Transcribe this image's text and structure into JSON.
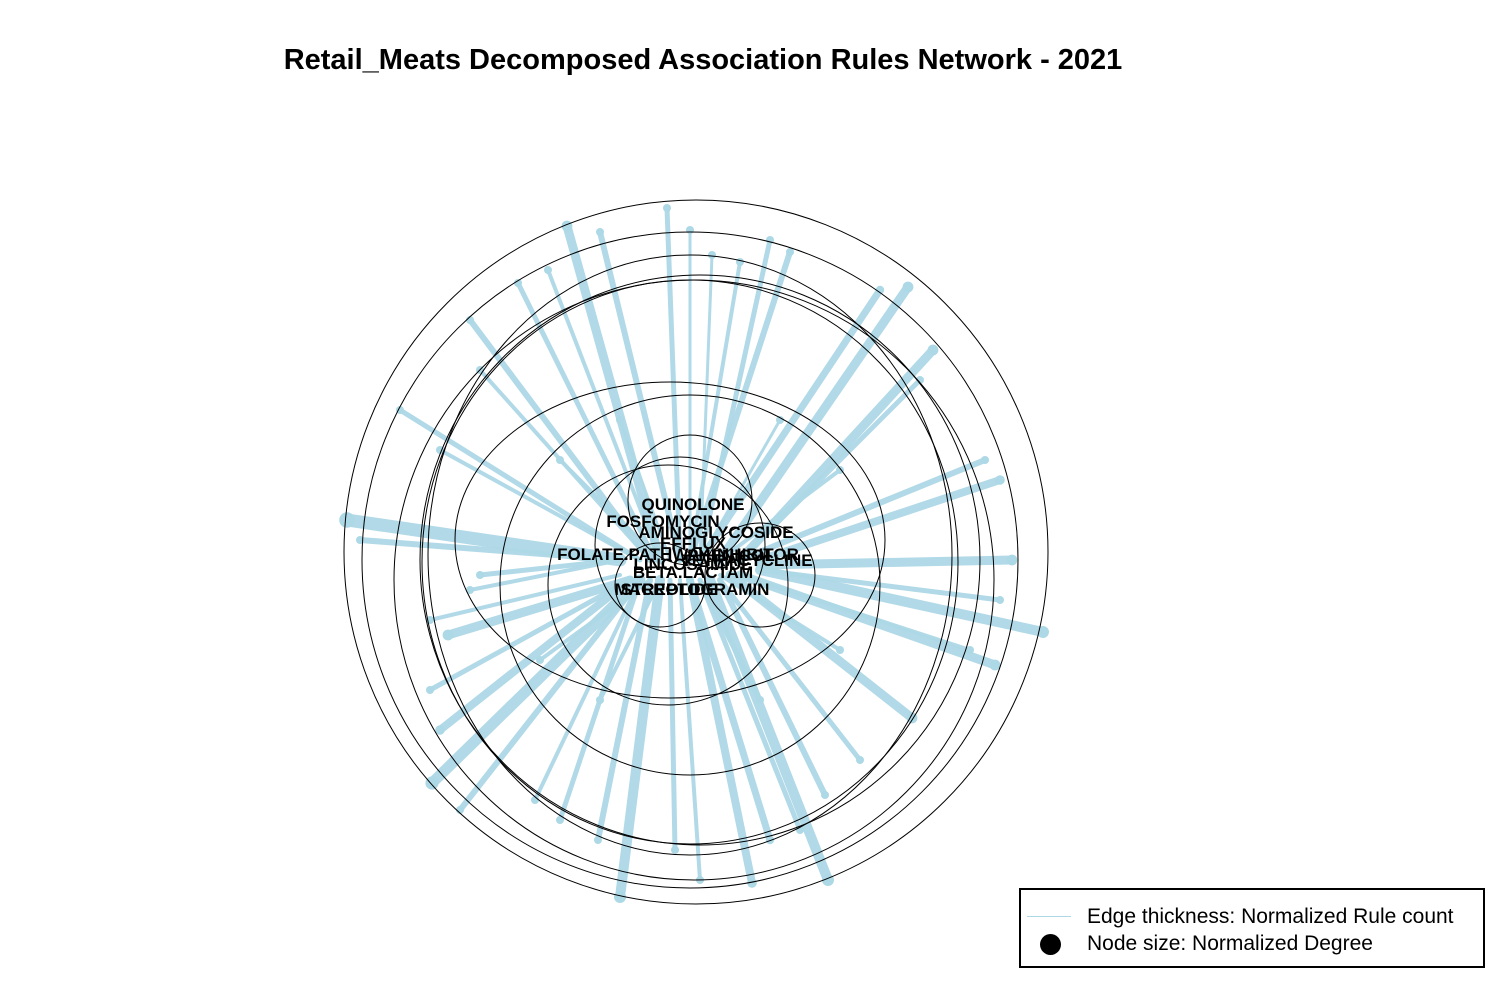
{
  "title": "Retail_Meats Decomposed Association Rules Network - 2021",
  "legend": {
    "edge_label": "Edge thickness: Normalized Rule count",
    "node_label": "Node size: Normalized Degree"
  },
  "colors": {
    "edge": "#add8e6",
    "ring": "#000000",
    "text": "#000000"
  },
  "node_labels": [
    "QUINOLONE",
    "FOSFOMYCIN",
    "AMINOGLYCOSIDE",
    "EFFLUX",
    "FOLATE.PATHWAY.INHIBITOR",
    "LINCOSAMIDE",
    "BETA.LACTAM",
    "STREPTOGRAMIN",
    "MACROLIDE",
    "PHENICOL",
    "TETRACYCLINE"
  ]
}
